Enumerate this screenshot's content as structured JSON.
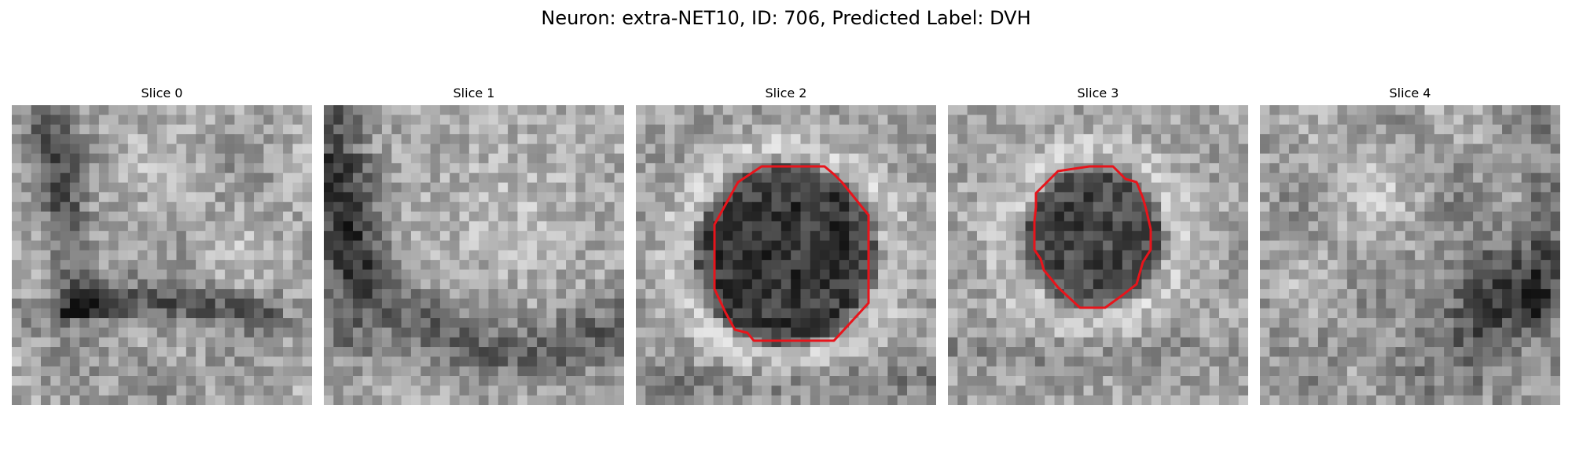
{
  "figure": {
    "title": "Neuron: extra-NET10, ID: 706, Predicted Label: DVH",
    "contour_color": "#e8141b",
    "colormap": "gray"
  },
  "slices": [
    {
      "label": "Slice 0",
      "has_contour": false,
      "texture": "diagonal dark band from upper left curving across lower middle"
    },
    {
      "label": "Slice 1",
      "has_contour": false,
      "texture": "dark curved band along left and bottom"
    },
    {
      "label": "Slice 2",
      "has_contour": true,
      "texture": "dark round cell body in center with bright ring"
    },
    {
      "label": "Slice 3",
      "has_contour": true,
      "texture": "smaller dark round cell body slightly left of center"
    },
    {
      "label": "Slice 4",
      "has_contour": false,
      "texture": "dark region at lower right"
    }
  ]
}
